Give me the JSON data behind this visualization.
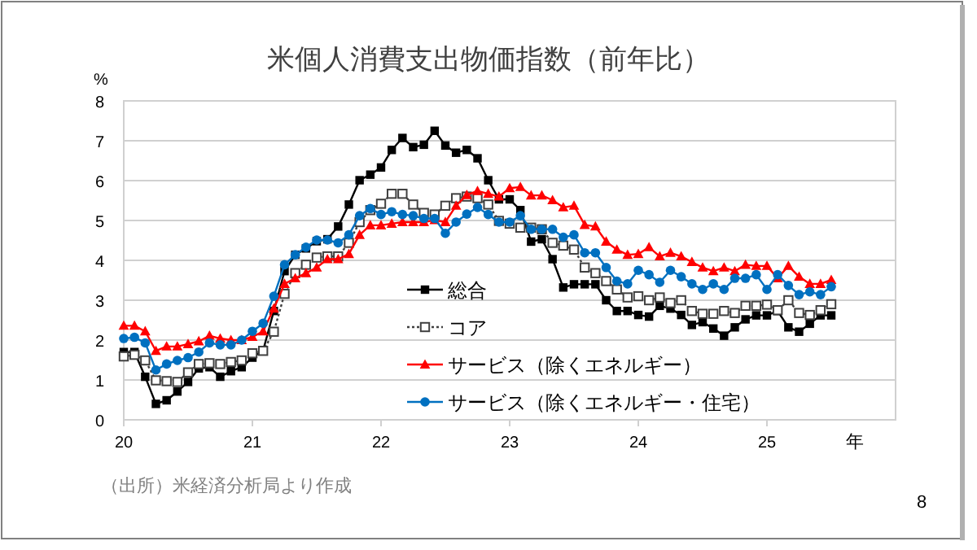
{
  "chart_data": {
    "type": "line",
    "title": "米個人消費支出物価指数（前年比）",
    "ylabel": "%",
    "xlabel": "年",
    "x": [
      "2020-01",
      "2020-02",
      "2020-03",
      "2020-04",
      "2020-05",
      "2020-06",
      "2020-07",
      "2020-08",
      "2020-09",
      "2020-10",
      "2020-11",
      "2020-12",
      "2021-01",
      "2021-02",
      "2021-03",
      "2021-04",
      "2021-05",
      "2021-06",
      "2021-07",
      "2021-08",
      "2021-09",
      "2021-10",
      "2021-11",
      "2021-12",
      "2022-01",
      "2022-02",
      "2022-03",
      "2022-04",
      "2022-05",
      "2022-06",
      "2022-07",
      "2022-08",
      "2022-09",
      "2022-10",
      "2022-11",
      "2022-12",
      "2023-01",
      "2023-02",
      "2023-03",
      "2023-04",
      "2023-05",
      "2023-06",
      "2023-07",
      "2023-08",
      "2023-09",
      "2023-10",
      "2023-11",
      "2023-12",
      "2024-01",
      "2024-02",
      "2024-03",
      "2024-04",
      "2024-05",
      "2024-06",
      "2024-07",
      "2024-08",
      "2024-09",
      "2024-10",
      "2024-11",
      "2024-12",
      "2025-01",
      "2025-02",
      "2025-03",
      "2025-04",
      "2025-05",
      "2025-06",
      "2025-07"
    ],
    "series": [
      {
        "name": "総合",
        "color": "#000000",
        "marker": "square",
        "line_style": "solid",
        "values": [
          1.7,
          1.7,
          1.08,
          0.4,
          0.49,
          0.71,
          0.95,
          1.29,
          1.32,
          1.08,
          1.22,
          1.32,
          1.56,
          1.74,
          2.73,
          3.73,
          4.14,
          4.3,
          4.48,
          4.53,
          4.85,
          5.4,
          6.01,
          6.15,
          6.33,
          6.77,
          7.07,
          6.84,
          6.9,
          7.25,
          6.88,
          6.7,
          6.77,
          6.56,
          6.01,
          5.53,
          5.53,
          5.26,
          4.47,
          4.53,
          4.03,
          3.32,
          3.4,
          3.4,
          3.4,
          3.0,
          2.73,
          2.73,
          2.63,
          2.59,
          2.86,
          2.79,
          2.63,
          2.38,
          2.45,
          2.29,
          2.11,
          2.32,
          2.52,
          2.62,
          2.62,
          2.73,
          2.32,
          2.21,
          2.41,
          2.62,
          2.62
        ]
      },
      {
        "name": "コア",
        "color": "#404040",
        "marker": "square",
        "line_style": "dotted",
        "values": [
          1.59,
          1.63,
          1.49,
          0.99,
          0.97,
          0.95,
          1.19,
          1.4,
          1.42,
          1.4,
          1.45,
          1.49,
          1.67,
          1.73,
          2.21,
          3.16,
          3.68,
          3.89,
          4.07,
          4.1,
          4.1,
          4.44,
          4.96,
          5.26,
          5.42,
          5.67,
          5.67,
          5.4,
          5.19,
          5.15,
          5.37,
          5.56,
          5.6,
          5.56,
          5.4,
          4.99,
          4.92,
          4.82,
          4.82,
          4.78,
          4.44,
          4.37,
          4.27,
          3.82,
          3.68,
          3.48,
          3.27,
          3.07,
          3.1,
          3.0,
          3.07,
          2.93,
          3.0,
          2.73,
          2.66,
          2.66,
          2.73,
          2.68,
          2.86,
          2.86,
          2.89,
          2.75,
          3.0,
          2.68,
          2.63,
          2.75,
          2.9
        ]
      },
      {
        "name": "サービス（除くエネルギー）",
        "color": "#ff0000",
        "marker": "triangle",
        "line_style": "solid",
        "values": [
          2.36,
          2.36,
          2.22,
          1.73,
          1.84,
          1.84,
          1.9,
          1.97,
          2.11,
          2.04,
          2.0,
          2.0,
          2.08,
          2.22,
          2.79,
          3.41,
          3.55,
          3.68,
          3.82,
          4.03,
          4.03,
          4.16,
          4.64,
          4.88,
          4.88,
          4.92,
          4.96,
          4.96,
          4.96,
          5.01,
          4.96,
          5.37,
          5.64,
          5.74,
          5.67,
          5.6,
          5.81,
          5.84,
          5.63,
          5.63,
          5.51,
          5.33,
          5.37,
          4.89,
          4.85,
          4.47,
          4.27,
          4.14,
          4.16,
          4.33,
          4.1,
          4.19,
          4.1,
          3.96,
          3.82,
          3.73,
          3.82,
          3.73,
          3.89,
          3.86,
          3.86,
          3.55,
          3.86,
          3.59,
          3.41,
          3.41,
          3.51
        ]
      },
      {
        "name": "サービス（除くエネルギー・住宅）",
        "color": "#0070c0",
        "marker": "circle",
        "line_style": "solid",
        "values": [
          2.04,
          2.07,
          1.93,
          1.25,
          1.4,
          1.49,
          1.56,
          1.7,
          1.93,
          1.88,
          1.88,
          2.0,
          2.22,
          2.42,
          3.1,
          3.89,
          4.14,
          4.33,
          4.51,
          4.51,
          4.44,
          4.64,
          5.12,
          5.3,
          5.15,
          5.22,
          5.15,
          5.12,
          5.05,
          5.05,
          4.68,
          4.96,
          5.16,
          5.33,
          5.15,
          4.96,
          4.96,
          5.12,
          4.78,
          4.78,
          4.78,
          4.58,
          4.64,
          4.19,
          4.19,
          3.82,
          3.48,
          3.41,
          3.75,
          3.64,
          3.45,
          3.75,
          3.59,
          3.41,
          3.27,
          3.41,
          3.27,
          3.55,
          3.55,
          3.64,
          3.27,
          3.64,
          3.37,
          3.14,
          3.21,
          3.14,
          3.34
        ]
      }
    ],
    "xlim": [
      "2020-01",
      "2026-01"
    ],
    "xticks": [
      {
        "value": "2020-01",
        "label": "20"
      },
      {
        "value": "2021-01",
        "label": "21"
      },
      {
        "value": "2022-01",
        "label": "22"
      },
      {
        "value": "2023-01",
        "label": "23"
      },
      {
        "value": "2024-01",
        "label": "24"
      },
      {
        "value": "2025-01",
        "label": "25"
      }
    ],
    "ylim": [
      0,
      8
    ],
    "yticks": [
      0,
      1,
      2,
      3,
      4,
      5,
      6,
      7,
      8
    ],
    "grid": "y",
    "legend": "bottom",
    "annotations": [
      "（出所）米経済分析局より作成",
      "8"
    ]
  }
}
